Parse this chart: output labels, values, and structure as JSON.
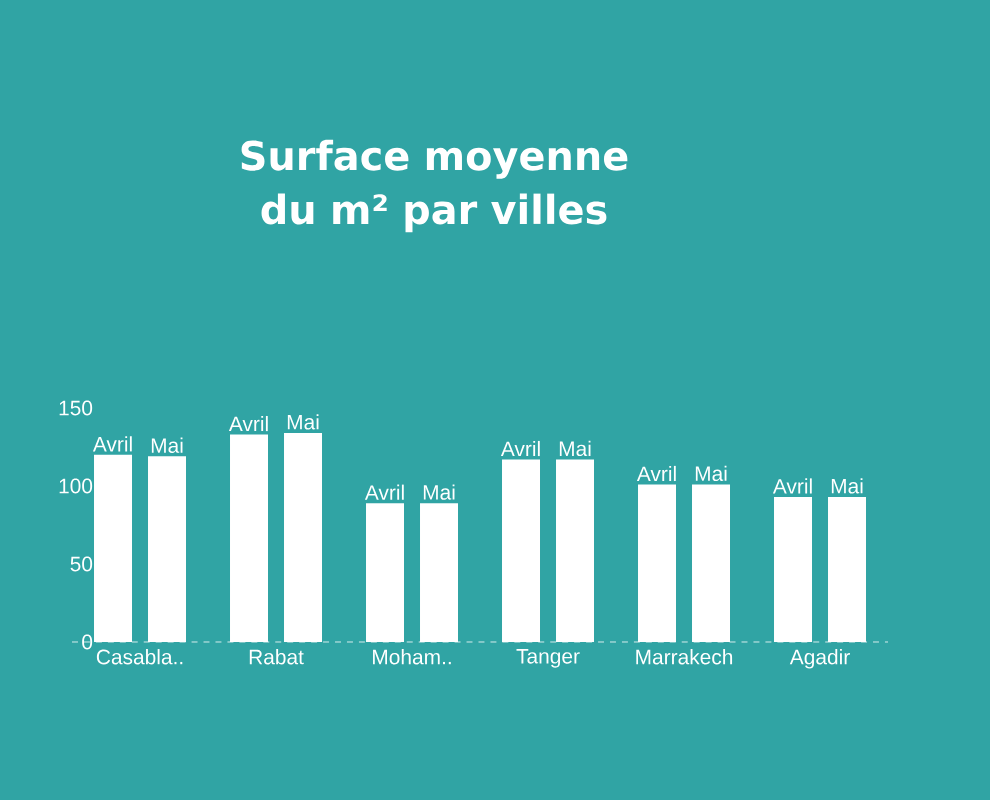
{
  "chart_data": {
    "type": "bar",
    "title": "Surface moyenne du m² par villes",
    "categories": [
      "Casabla..",
      "Rabat",
      "Moham..",
      "Tanger",
      "Marrakech",
      "Agadir"
    ],
    "series": [
      {
        "name": "Avril",
        "color": "#ffffff",
        "values": [
          120,
          133,
          89,
          117,
          101,
          93
        ]
      },
      {
        "name": "Mai",
        "color": "#ffffff",
        "values": [
          119,
          134,
          89,
          117,
          101,
          93
        ]
      }
    ],
    "ylim": [
      0,
      150
    ],
    "yticks": [
      0,
      50,
      100,
      150
    ]
  }
}
